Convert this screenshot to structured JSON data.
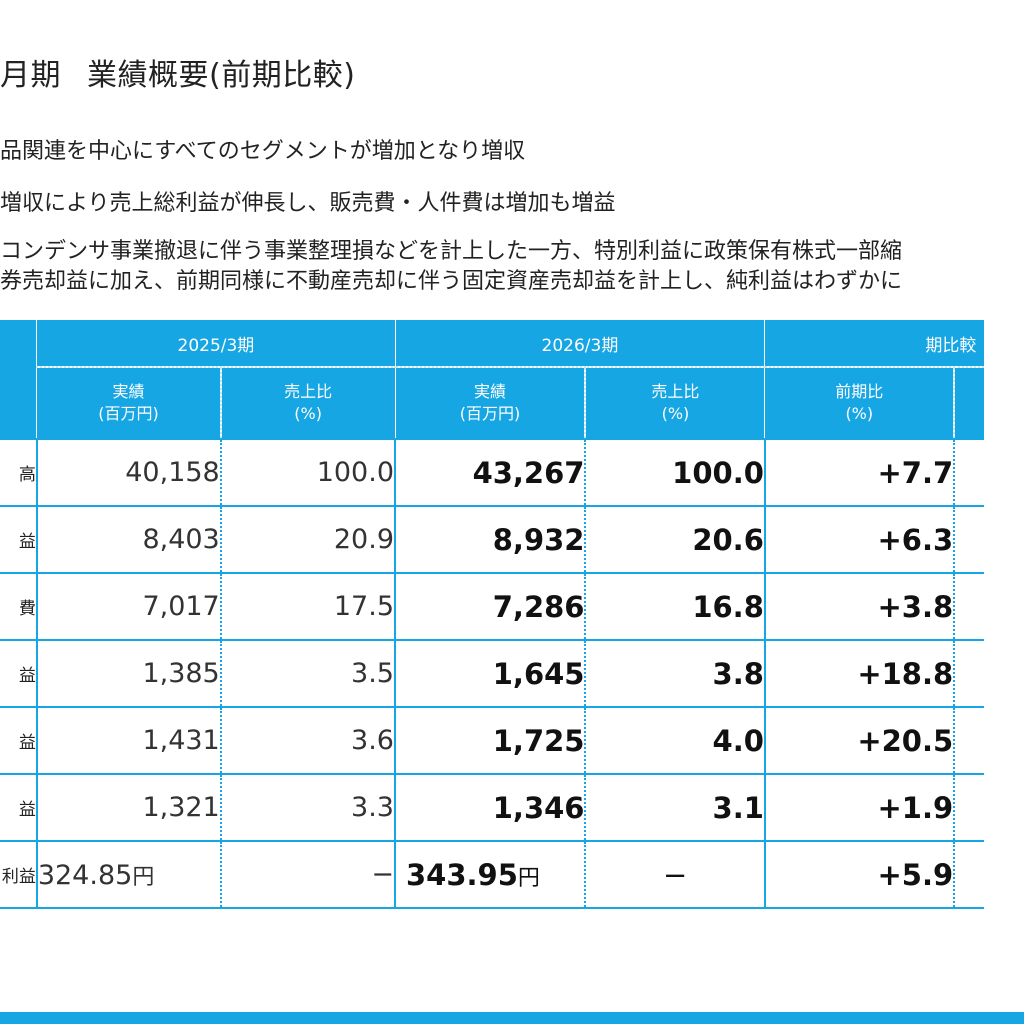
{
  "title": {
    "period": "月期",
    "heading": "業績概要(前期比較)"
  },
  "bullets": [
    "品関連を中心にすべてのセグメントが増加となり増収",
    "増収により売上総利益が伸長し、販売費・人件費は増加も増益",
    "コンデンサ事業撤退に伴う事業整理損などを計上した一方、特別利益に政策保有株式一部縮",
    "券売却益に加え、前期同様に不動産売却に伴う固定資産売却益を計上し、純利益はわずかに"
  ],
  "table": {
    "groups": {
      "prev": "2025/3期",
      "cur": "2026/3期",
      "compare": "期比較"
    },
    "subheaders": {
      "actual_l1": "実績",
      "actual_l2": "(百万円)",
      "ratio_l1": "売上比",
      "ratio_l2": "(%)",
      "yoy_l1": "前期比",
      "yoy_l2": "(%)"
    },
    "rows": [
      {
        "label": "高",
        "prev_actual": "40,158",
        "prev_ratio": "100.0",
        "cur_actual": "43,267",
        "cur_ratio": "100.0",
        "yoy": "+7.7"
      },
      {
        "label": "益",
        "prev_actual": "8,403",
        "prev_ratio": "20.9",
        "cur_actual": "8,932",
        "cur_ratio": "20.6",
        "yoy": "+6.3"
      },
      {
        "label": "費",
        "prev_actual": "7,017",
        "prev_ratio": "17.5",
        "cur_actual": "7,286",
        "cur_ratio": "16.8",
        "yoy": "+3.8"
      },
      {
        "label": "益",
        "prev_actual": "1,385",
        "prev_ratio": "3.5",
        "cur_actual": "1,645",
        "cur_ratio": "3.8",
        "yoy": "+18.8"
      },
      {
        "label": "益",
        "prev_actual": "1,431",
        "prev_ratio": "3.6",
        "cur_actual": "1,725",
        "cur_ratio": "4.0",
        "yoy": "+20.5"
      },
      {
        "label": "益",
        "prev_actual": "1,321",
        "prev_ratio": "3.3",
        "cur_actual": "1,346",
        "cur_ratio": "3.1",
        "yoy": "+1.9"
      },
      {
        "label": "利益",
        "prev_actual": "324.85",
        "prev_unit": "円",
        "prev_ratio": "−",
        "cur_actual": "343.95",
        "cur_unit": "円",
        "cur_ratio": "−",
        "yoy": "+5.9"
      }
    ]
  },
  "colors": {
    "accent": "#16a6e3",
    "text": "#222222"
  }
}
